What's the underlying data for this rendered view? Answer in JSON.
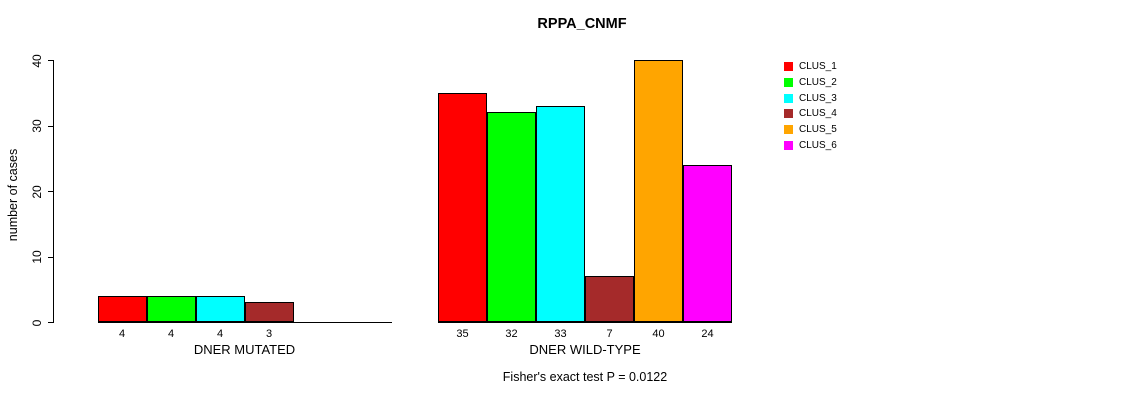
{
  "chart_data": {
    "type": "bar",
    "title": "RPPA_CNMF",
    "ylabel": "number of cases",
    "ylim": [
      0,
      40
    ],
    "yticks": [
      0,
      10,
      20,
      30,
      40
    ],
    "grid": false,
    "legend_position": "right",
    "categories": [
      "DNER MUTATED",
      "DNER WILD-TYPE"
    ],
    "series": [
      {
        "name": "CLUS_1",
        "color": "#FF0000",
        "values": [
          4,
          35
        ]
      },
      {
        "name": "CLUS_2",
        "color": "#00FF00",
        "values": [
          4,
          32
        ]
      },
      {
        "name": "CLUS_3",
        "color": "#00FFFF",
        "values": [
          4,
          33
        ]
      },
      {
        "name": "CLUS_4",
        "color": "#A52A2A",
        "values": [
          3,
          7
        ]
      },
      {
        "name": "CLUS_5",
        "color": "#FFA500",
        "values": [
          0,
          40
        ]
      },
      {
        "name": "CLUS_6",
        "color": "#FF00FF",
        "values": [
          0,
          24
        ]
      }
    ],
    "annotation": "Fisher's exact test P = 0.0122"
  }
}
